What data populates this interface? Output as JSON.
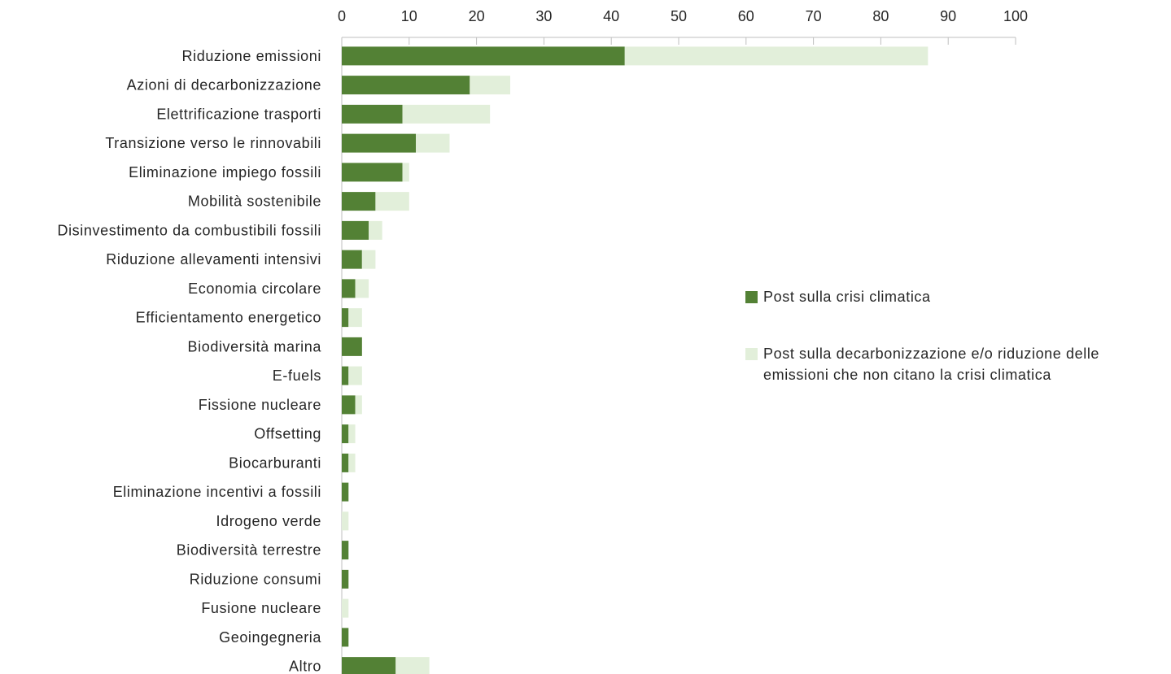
{
  "chart_data": {
    "type": "bar",
    "orientation": "horizontal",
    "stacked": true,
    "title": "",
    "xlabel": "",
    "ylabel": "",
    "xlim": [
      0,
      100
    ],
    "x_ticks": [
      0,
      10,
      20,
      30,
      40,
      50,
      60,
      70,
      80,
      90,
      100
    ],
    "x_axis_position": "top",
    "grid": false,
    "legend_position": "right",
    "categories": [
      "Riduzione emissioni",
      "Azioni di decarbonizzazione",
      "Elettrificazione trasporti",
      "Transizione verso le rinnovabili",
      "Eliminazione impiego fossili",
      "Mobilità sostenibile",
      "Disinvestimento da combustibili fossili",
      "Riduzione allevamenti intensivi",
      "Economia circolare",
      "Efficientamento energetico",
      "Biodiversità marina",
      "E-fuels",
      "Fissione nucleare",
      "Offsetting",
      "Biocarburanti",
      "Eliminazione incentivi a fossili",
      "Idrogeno verde",
      "Biodiversità terrestre",
      "Riduzione consumi",
      "Fusione nucleare",
      "Geoingegneria",
      "Altro"
    ],
    "series": [
      {
        "name": "Post sulla crisi climatica",
        "color": "#538135",
        "values": [
          42,
          19,
          9,
          11,
          9,
          5,
          4,
          3,
          2,
          1,
          3,
          1,
          2,
          1,
          1,
          1,
          0,
          1,
          1,
          0,
          1,
          8
        ]
      },
      {
        "name": "Post sulla decarbonizzazione e/o riduzione delle emissioni che non citano la crisi climatica",
        "color": "#E2EFDA",
        "values": [
          45,
          6,
          13,
          5,
          1,
          5,
          2,
          2,
          2,
          2,
          0,
          2,
          1,
          1,
          1,
          0,
          1,
          0,
          0,
          1,
          0,
          5
        ]
      }
    ]
  }
}
